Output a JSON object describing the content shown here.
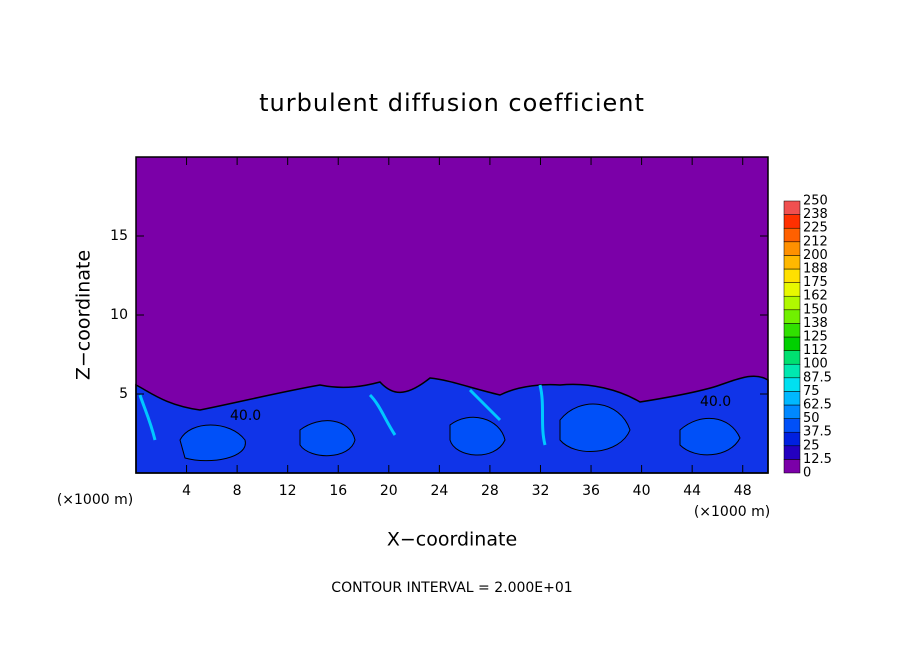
{
  "chart_data": {
    "type": "contour",
    "title": "turbulent diffusion coefficient",
    "x_label": "X−coordinate",
    "y_label": "Z−coordinate",
    "x_unit": "(×1000 m)",
    "y_unit": "(×1000 m)",
    "footer": "CONTOUR INTERVAL = 2.000E+01",
    "contour_labels": [
      "40.0",
      "40.0"
    ],
    "xlim": [
      0,
      50
    ],
    "xticks": [
      4,
      8,
      12,
      16,
      20,
      24,
      28,
      32,
      36,
      40,
      44,
      48
    ],
    "ylim": [
      0,
      20
    ],
    "yticks": [
      5,
      10,
      15
    ],
    "background_color": "#7b00a8",
    "colorbar": {
      "levels": [
        0,
        12.5,
        25,
        37.5,
        50,
        62.5,
        75,
        87.5,
        100,
        112,
        125,
        138,
        150,
        162,
        175,
        188,
        200,
        212,
        225,
        238,
        250
      ],
      "colors": [
        "#7b00a8",
        "#2400c0",
        "#0020e0",
        "#0050f8",
        "#0088ff",
        "#00b8ff",
        "#00e0f0",
        "#00e8b0",
        "#00e070",
        "#00d000",
        "#30e000",
        "#70f000",
        "#b0f800",
        "#e8f800",
        "#ffe000",
        "#ffb800",
        "#ff9000",
        "#ff6000",
        "#ff3000",
        "#f05050"
      ]
    }
  }
}
